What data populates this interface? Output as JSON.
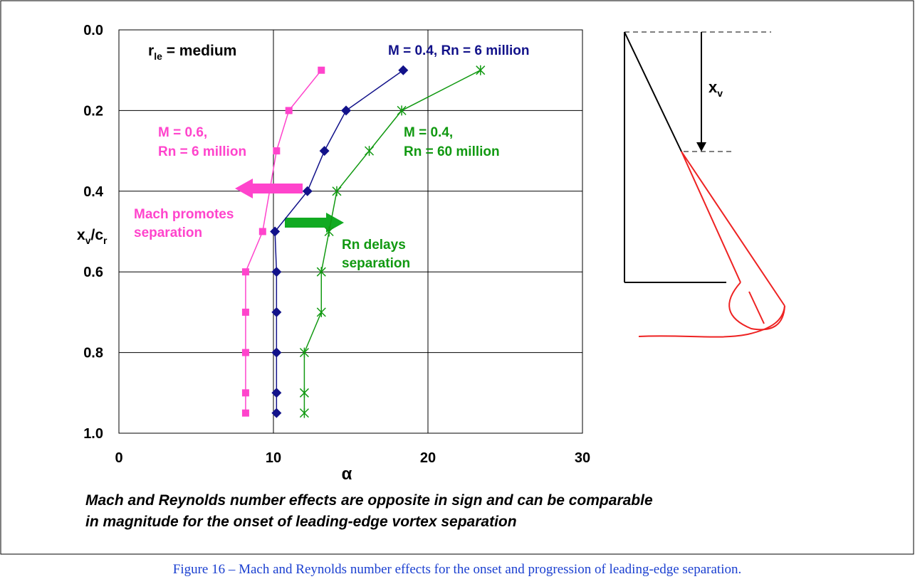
{
  "chart_data": {
    "type": "line",
    "xlabel": "α",
    "ylabel_parts": [
      "x",
      "v",
      "/c",
      "r"
    ],
    "xlim": [
      0,
      30
    ],
    "xticks": [
      0,
      10,
      20,
      30
    ],
    "ylim": [
      0,
      1
    ],
    "y_inverted": true,
    "yticks": [
      {
        "value": 0,
        "label": "0.0"
      },
      0.2,
      0.4,
      0.6,
      0.8,
      {
        "value": 1,
        "label": "1.0"
      }
    ],
    "grid": true,
    "header_parts": [
      "r",
      "le",
      " = medium"
    ],
    "series": [
      {
        "name": [
          "M = 0.6,",
          "Rn = 6 million"
        ],
        "color": "#ff44cc",
        "marker": "square",
        "x": [
          13.1,
          11.0,
          10.2,
          9.3,
          8.2,
          8.2,
          8.2,
          8.2,
          8.2
        ],
        "values": [
          0.1,
          0.2,
          0.3,
          0.5,
          0.6,
          0.7,
          0.8,
          0.9,
          0.95
        ]
      },
      {
        "name": "M = 0.4, Rn = 6 million",
        "color": "#12128a",
        "marker": "diamond",
        "x": [
          18.4,
          14.7,
          13.3,
          12.2,
          10.1,
          10.2,
          10.2,
          10.2,
          10.2,
          10.2
        ],
        "values": [
          0.1,
          0.2,
          0.3,
          0.4,
          0.5,
          0.6,
          0.7,
          0.8,
          0.9,
          0.95
        ]
      },
      {
        "name": [
          "M = 0.4,",
          "Rn = 60 million"
        ],
        "color": "#119911",
        "marker": "asterisk",
        "x": [
          23.4,
          18.3,
          16.2,
          14.1,
          13.6,
          13.1,
          13.1,
          12.0,
          12.0,
          12.0
        ],
        "values": [
          0.1,
          0.2,
          0.3,
          0.4,
          0.5,
          0.6,
          0.7,
          0.8,
          0.9,
          0.95
        ]
      }
    ],
    "annotations": [
      {
        "lines": [
          "Mach promotes",
          "separation"
        ],
        "color": "#ff44cc"
      },
      {
        "lines": [
          "Rn delays",
          "separation"
        ],
        "color": "#119911"
      }
    ]
  },
  "diagram": {
    "label_parts": [
      "x",
      "v"
    ]
  },
  "caption": [
    "Mach and Reynolds number effects are opposite in sign and can be comparable",
    "in magnitude for the onset of leading-edge vortex separation"
  ],
  "figure_caption": "Figure 16 – Mach and Reynolds number effects for the onset and progression of leading-edge separation."
}
